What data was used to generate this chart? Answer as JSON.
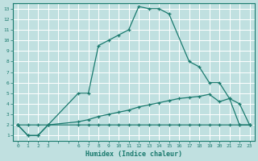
{
  "xlabel": "Humidex (Indice chaleur)",
  "bg_color": "#c0e0e0",
  "grid_color": "#ffffff",
  "line_color": "#1a7a6e",
  "xlim": [
    0,
    23
  ],
  "ylim": [
    1,
    13
  ],
  "xticks": [
    0,
    1,
    2,
    3,
    4,
    5,
    6,
    7,
    8,
    9,
    10,
    11,
    12,
    13,
    14,
    15,
    16,
    17,
    18,
    19,
    20,
    21,
    22,
    23
  ],
  "xtick_labels": [
    "0",
    "1",
    "2",
    "3",
    "",
    "",
    "6",
    "7",
    "8",
    "9",
    "10",
    "11",
    "12",
    "13",
    "14",
    "15",
    "16",
    "17",
    "18",
    "19",
    "20",
    "21",
    "22",
    "23"
  ],
  "yticks": [
    1,
    2,
    3,
    4,
    5,
    6,
    7,
    8,
    9,
    10,
    11,
    12,
    13
  ],
  "line1_x": [
    0,
    1,
    2,
    3,
    6,
    7,
    8,
    9,
    10,
    11,
    12,
    13,
    14,
    15,
    17,
    18,
    19,
    20,
    21,
    22,
    23
  ],
  "line1_y": [
    2,
    2,
    2,
    2,
    5,
    5,
    9.5,
    10,
    10.5,
    11,
    13.2,
    13.0,
    13.0,
    12.5,
    8,
    7.5,
    6,
    6,
    4.5,
    2,
    2
  ],
  "line2_x": [
    0,
    1,
    2,
    3,
    6,
    7,
    8,
    9,
    10,
    11,
    12,
    13,
    14,
    15,
    16,
    17,
    18,
    19,
    20,
    21,
    22,
    23
  ],
  "line2_y": [
    2,
    1,
    1,
    2,
    2,
    2,
    2,
    2,
    2,
    2,
    2,
    2,
    2,
    2,
    2,
    2,
    2,
    2,
    2,
    2,
    2,
    2
  ],
  "line3_x": [
    0,
    1,
    2,
    3,
    6,
    7,
    8,
    9,
    10,
    11,
    12,
    13,
    14,
    15,
    16,
    17,
    18,
    19,
    20,
    21,
    22,
    23
  ],
  "line3_y": [
    2,
    1,
    1,
    2,
    2.3,
    2.5,
    2.8,
    3.0,
    3.2,
    3.4,
    3.7,
    3.9,
    4.1,
    4.3,
    4.5,
    4.6,
    4.7,
    4.9,
    4.2,
    4.5,
    4.0,
    2
  ]
}
